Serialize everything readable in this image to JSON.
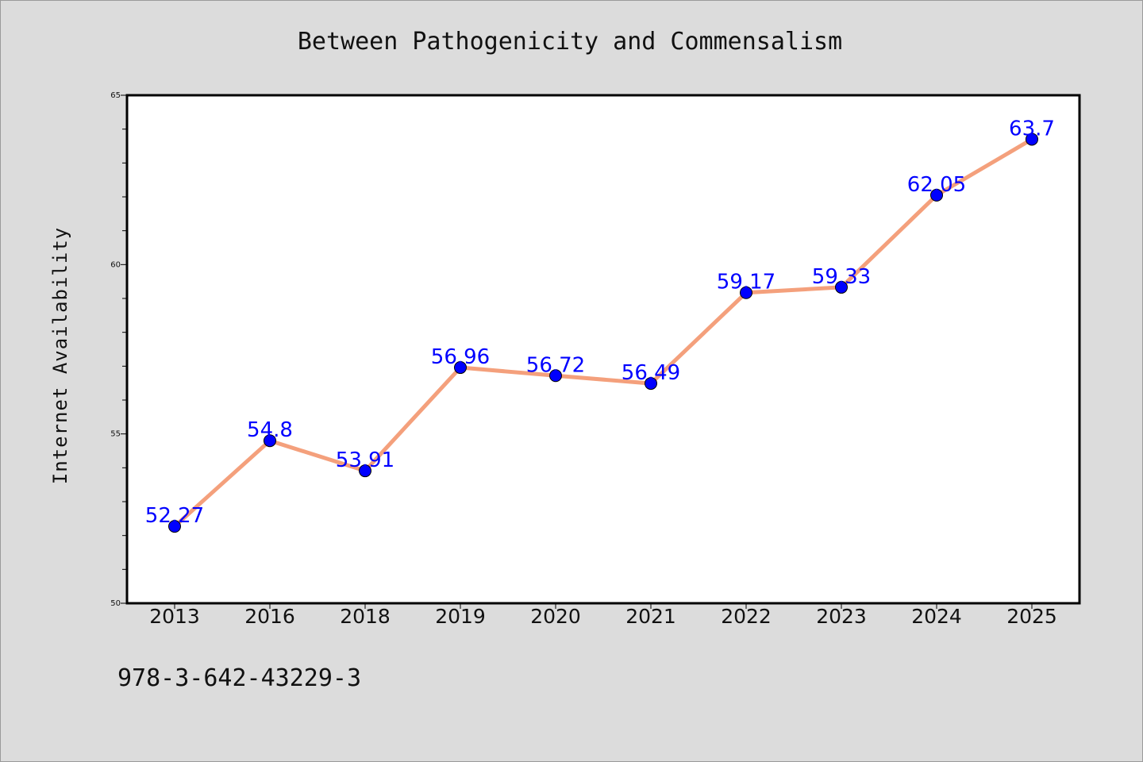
{
  "chart_data": {
    "type": "line",
    "title": "Between Pathogenicity and Commensalism",
    "xlabel": "",
    "ylabel": "Internet Availability",
    "categories": [
      "2013",
      "2016",
      "2018",
      "2019",
      "2020",
      "2021",
      "2022",
      "2023",
      "2024",
      "2025"
    ],
    "values": [
      52.27,
      54.8,
      53.91,
      56.96,
      56.72,
      56.49,
      59.17,
      59.33,
      62.05,
      63.7
    ],
    "data_labels": [
      "52.27",
      "54.8",
      "53.91",
      "56.96",
      "56.72",
      "56.49",
      "59.17",
      "59.33",
      "62.05",
      "63.7"
    ],
    "ylim": [
      50,
      65
    ],
    "yticks": [
      50,
      55,
      60,
      65
    ],
    "grid": false,
    "legend": "none",
    "colors": {
      "background": "#dcdcdc",
      "plot_background": "#ffffff",
      "line": "#f4a07c",
      "marker": "#0000ff",
      "data_label": "#0000ff",
      "axes": "#000000"
    }
  },
  "footer": {
    "isbn": "978-3-642-43229-3"
  }
}
